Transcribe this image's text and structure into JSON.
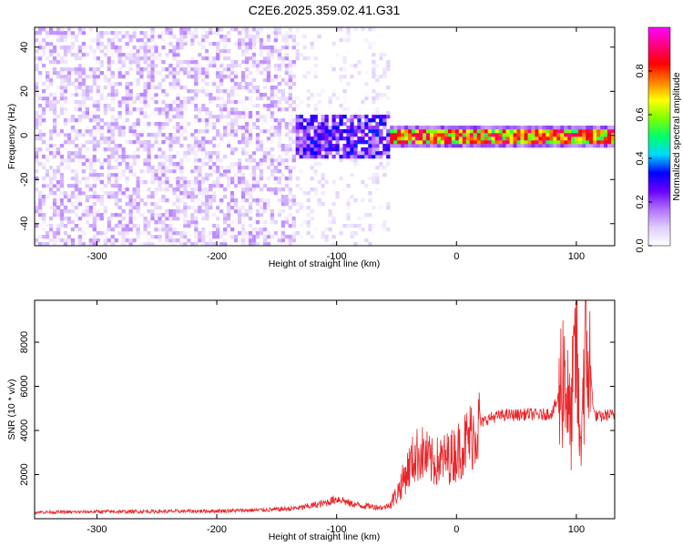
{
  "figure": {
    "title": "C2E6.2025.359.02.41.G31"
  },
  "colors": {
    "snr_line": "#e8262a",
    "axes": "#000000",
    "background": "#ffffff"
  },
  "chart_data": [
    {
      "type": "heatmap",
      "name": "spectrogram",
      "xlabel": "Height of straight line (km)",
      "ylabel": "Frequency (Hz)",
      "xlim": [
        -352,
        132
      ],
      "ylim": [
        -50,
        49
      ],
      "x_ticks": [
        -300,
        -200,
        -100,
        0,
        100
      ],
      "y_ticks": [
        -40,
        -20,
        0,
        20,
        40
      ],
      "colorbar": {
        "label": "Normalized spectral amplitude",
        "range": [
          0,
          1
        ],
        "ticks": [
          0.0,
          0.2,
          0.4,
          0.6,
          0.8
        ],
        "colormap": [
          "#ffffff",
          "#e0ccff",
          "#b070ff",
          "#6a00ff",
          "#0000ff",
          "#00d8ff",
          "#00ff6a",
          "#7fff00",
          "#ffff00",
          "#ff8000",
          "#ff0000",
          "#ff0080",
          "#ff00ff"
        ]
      },
      "regions": [
        {
          "x": [
            -352,
            -135
          ],
          "freq": [
            -50,
            49
          ],
          "amplitude": [
            0.0,
            0.15
          ],
          "description": "broadband noise"
        },
        {
          "x": [
            -135,
            -55
          ],
          "freq": [
            -10,
            10
          ],
          "amplitude": [
            0.1,
            0.35
          ],
          "description": "emerging signal band"
        },
        {
          "x": [
            -55,
            132
          ],
          "freq": [
            -3,
            3
          ],
          "amplitude": [
            0.5,
            0.95
          ],
          "description": "signal band near 0 Hz"
        }
      ]
    },
    {
      "type": "line",
      "name": "snr",
      "xlabel": "Height of straight line (km)",
      "ylabel": "SNR (10 * v/v)",
      "xlim": [
        -352,
        132
      ],
      "ylim": [
        0,
        9900
      ],
      "x_ticks": [
        -300,
        -200,
        -100,
        0,
        100
      ],
      "y_ticks": [
        2000,
        4000,
        6000,
        8000
      ],
      "series": [
        {
          "color": "#e8262a",
          "x": [
            -352,
            -320,
            -300,
            -280,
            -260,
            -240,
            -220,
            -200,
            -180,
            -160,
            -150,
            -140,
            -130,
            -120,
            -110,
            -100,
            -95,
            -90,
            -85,
            -80,
            -75,
            -70,
            -65,
            -60,
            -55,
            -50,
            -45,
            -40,
            -35,
            -30,
            -25,
            -20,
            -15,
            -10,
            -5,
            0,
            5,
            10,
            15,
            20,
            25,
            30,
            40,
            50,
            60,
            70,
            80,
            85,
            90,
            95,
            100,
            103,
            106,
            110,
            115,
            120,
            125,
            132
          ],
          "y": [
            300,
            300,
            320,
            320,
            330,
            330,
            340,
            350,
            370,
            400,
            420,
            450,
            500,
            600,
            700,
            900,
            850,
            700,
            650,
            600,
            580,
            550,
            520,
            500,
            700,
            1100,
            1700,
            2300,
            2800,
            3000,
            2800,
            2500,
            2600,
            2700,
            2800,
            3000,
            3300,
            3600,
            4000,
            4300,
            4500,
            4600,
            4700,
            4700,
            4750,
            4700,
            4800,
            5500,
            7000,
            4000,
            8000,
            3000,
            6500,
            7500,
            4700,
            4600,
            4700,
            4700
          ]
        }
      ]
    }
  ]
}
